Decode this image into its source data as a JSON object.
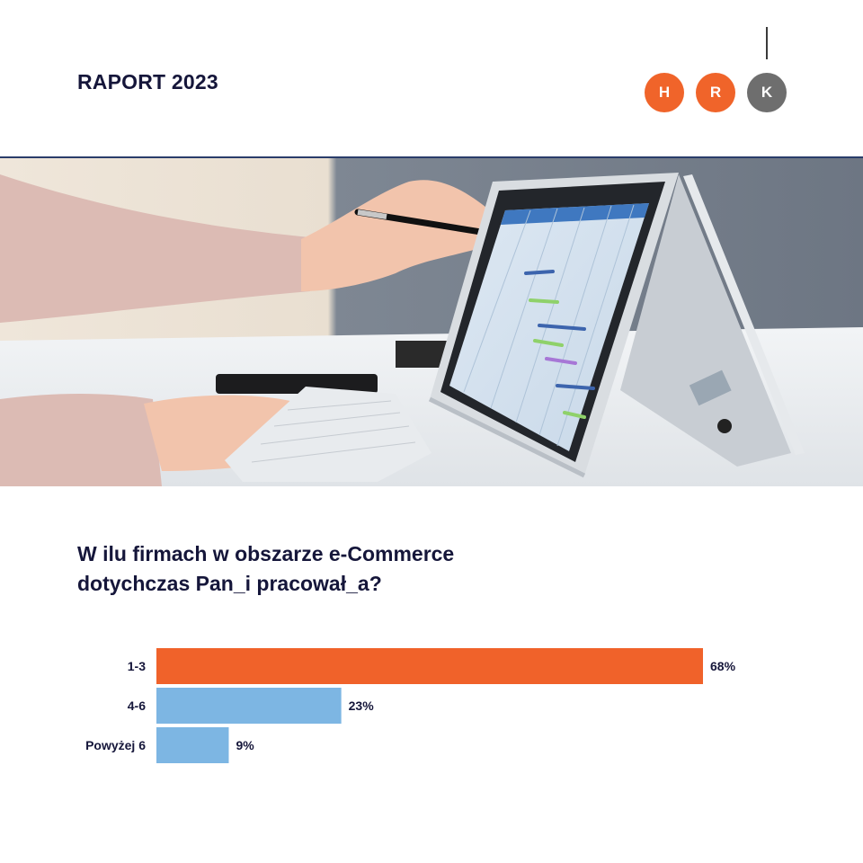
{
  "header": {
    "report_title": "RAPORT 2023",
    "logo_letters": [
      "H",
      "R",
      "K"
    ],
    "logo_colors": [
      "#f0642a",
      "#f0642a",
      "#6e6e6e"
    ]
  },
  "question": {
    "line1": "W ilu firmach w obszarze e-Commerce",
    "line2": "dotychczas Pan_i pracował_a?"
  },
  "colors": {
    "highlight_bar": "#f0622a",
    "bar": "#7db6e3",
    "text_dark": "#15163a"
  },
  "chart_data": {
    "type": "bar",
    "orientation": "horizontal",
    "categories": [
      "1-3",
      "4-6",
      "Powyżej 6"
    ],
    "values": [
      68,
      23,
      9
    ],
    "value_labels": [
      "68%",
      "23%",
      "9%"
    ],
    "unit": "%",
    "xlim": [
      0,
      68
    ],
    "grid": false,
    "legend": "none"
  }
}
